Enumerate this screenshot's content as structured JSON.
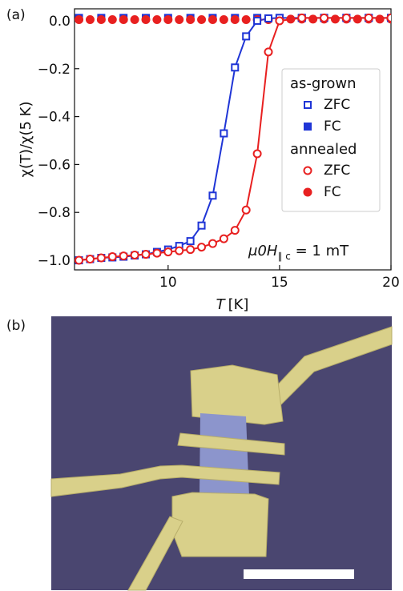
{
  "panel_a_label": "(a)",
  "panel_b_label": "(b)",
  "chart_data": {
    "type": "line",
    "xlabel_var": "T",
    "xlabel_unit": "[K]",
    "ylabel": "χ(T)/χ(5 K)",
    "xlim": [
      5.8,
      20
    ],
    "ylim": [
      -1.04,
      0.05
    ],
    "xticks": [
      10,
      15,
      20
    ],
    "yticks": [
      0.0,
      -0.2,
      -0.4,
      -0.6,
      -0.8,
      -1.0
    ],
    "ytick_labels": [
      "0.0",
      "−0.2",
      "−0.4",
      "−0.6",
      "−0.8",
      "−1.0"
    ],
    "grid": false,
    "legend_position": "right",
    "legend_groups": [
      {
        "label": "as-grown",
        "entries": [
          "ZFC",
          "FC"
        ]
      },
      {
        "label": "annealed",
        "entries": [
          "ZFC",
          "FC"
        ]
      }
    ],
    "annotation_main": "μ0H",
    "annotation_sub": "∥ c",
    "annotation_rest": " = 1 mT",
    "series": [
      {
        "group": "as-grown",
        "name": "ZFC",
        "color": "#1f35d6",
        "marker": "square",
        "fill": "open",
        "curve": true,
        "x": [
          6,
          6.5,
          7,
          7.5,
          8,
          8.5,
          9,
          9.5,
          10,
          10.5,
          11,
          11.5,
          12,
          12.5,
          13,
          13.5,
          14,
          14.5,
          15,
          16,
          17,
          18,
          19,
          20
        ],
        "y": [
          -1.0,
          -0.995,
          -0.99,
          -0.988,
          -0.985,
          -0.98,
          -0.975,
          -0.965,
          -0.955,
          -0.94,
          -0.92,
          -0.855,
          -0.73,
          -0.47,
          -0.195,
          -0.065,
          0.0,
          0.01,
          0.012,
          0.012,
          0.012,
          0.012,
          0.012,
          0.012
        ]
      },
      {
        "group": "as-grown",
        "name": "FC",
        "color": "#1f35d6",
        "marker": "square",
        "fill": "solid",
        "curve": false,
        "x": [
          6,
          7,
          8,
          9,
          10,
          11,
          12,
          13,
          14,
          15,
          16,
          17,
          18,
          19,
          20
        ],
        "y": [
          0.012,
          0.012,
          0.012,
          0.012,
          0.012,
          0.012,
          0.012,
          0.012,
          0.012,
          0.012,
          0.012,
          0.012,
          0.012,
          0.012,
          0.012
        ]
      },
      {
        "group": "annealed",
        "name": "ZFC",
        "color": "#e82020",
        "marker": "circle",
        "fill": "open",
        "curve": true,
        "x": [
          6,
          6.5,
          7,
          7.5,
          8,
          8.5,
          9,
          9.5,
          10,
          10.5,
          11,
          11.5,
          12,
          12.5,
          13,
          13.5,
          14,
          14.5,
          15,
          16,
          17,
          18,
          19,
          20
        ],
        "y": [
          -1.0,
          -0.995,
          -0.99,
          -0.985,
          -0.982,
          -0.978,
          -0.975,
          -0.97,
          -0.965,
          -0.96,
          -0.955,
          -0.945,
          -0.93,
          -0.91,
          -0.875,
          -0.79,
          -0.555,
          -0.13,
          0.0,
          0.012,
          0.012,
          0.012,
          0.012,
          0.012
        ]
      },
      {
        "group": "annealed",
        "name": "FC",
        "color": "#e82020",
        "marker": "circle",
        "fill": "solid",
        "curve": false,
        "x": [
          6,
          6.5,
          7,
          7.5,
          8,
          8.5,
          9,
          9.5,
          10,
          10.5,
          11,
          11.5,
          12,
          12.5,
          13,
          13.5,
          14,
          14.5,
          15,
          15.5,
          16,
          16.5,
          17,
          17.5,
          18,
          18.5,
          19,
          19.5,
          20
        ],
        "y": [
          0.005,
          0.005,
          0.005,
          0.005,
          0.005,
          0.005,
          0.005,
          0.005,
          0.005,
          0.005,
          0.005,
          0.005,
          0.005,
          0.005,
          0.005,
          0.005,
          0.005,
          0.005,
          0.007,
          0.007,
          0.007,
          0.007,
          0.007,
          0.007,
          0.007,
          0.007,
          0.007,
          0.007,
          0.007
        ]
      }
    ]
  },
  "photo": {
    "background_color": "#4a4670",
    "contact_color": "#d9d08a",
    "flake_color": "#8c95cc",
    "scale_bar_color": "#ffffff"
  }
}
